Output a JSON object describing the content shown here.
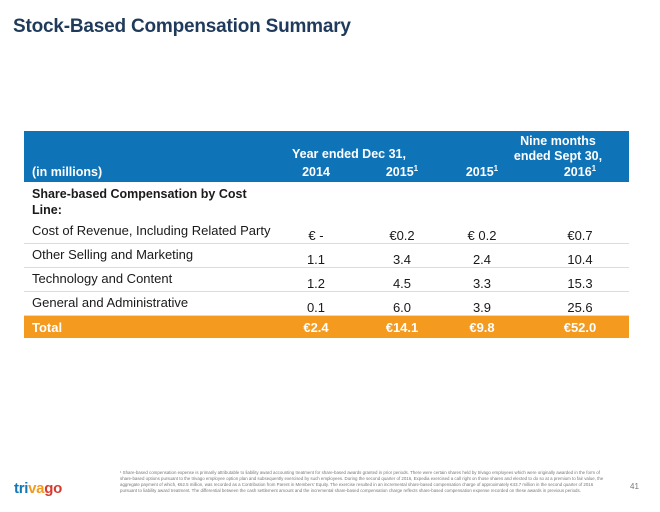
{
  "title": "Stock-Based Compensation Summary",
  "table": {
    "header": {
      "year_group": "Year ended Dec 31,",
      "nine_group_line1": "Nine months",
      "nine_group_line2": "ended Sept 30,",
      "units": "(in millions)",
      "cols": [
        {
          "year": "2014",
          "sup": ""
        },
        {
          "year": "2015",
          "sup": "1"
        },
        {
          "year": "2015",
          "sup": "1"
        },
        {
          "year": "2016",
          "sup": "1"
        }
      ]
    },
    "section_label": "Share-based Compensation by Cost Line:",
    "rows": [
      {
        "label": "Cost of Revenue, Including Related Party",
        "values": [
          "€ -",
          "€0.2",
          "€ 0.2",
          "€0.7"
        ]
      },
      {
        "label": "Other Selling and Marketing",
        "values": [
          "1.1",
          "3.4",
          "2.4",
          "10.4"
        ]
      },
      {
        "label": "Technology and Content",
        "values": [
          "1.2",
          "4.5",
          "3.3",
          "15.3"
        ]
      },
      {
        "label": "General and Administrative",
        "values": [
          "0.1",
          "6.0",
          "3.9",
          "25.6"
        ]
      }
    ],
    "total": {
      "label": "Total",
      "values": [
        "€2.4",
        "€14.1",
        "€9.8",
        "€52.0"
      ]
    }
  },
  "logo": {
    "part1": "tri",
    "part2": "va",
    "part3": "go"
  },
  "footnote": "¹ Share-based compensation expense is primarily attributable to liability award accounting treatment for share-based awards granted in prior periods. There were certain shares held by trivago employees which were originally awarded in the form of share-based options pursuant to the trivago employee option plan and subsequently exercised by such employees. During the second quarter of 2016, Expedia exercised a call right on those shares and elected to do so at a premium to fair value, the aggregate payment of which, €62.5 million, was recorded as a Contribution from Parent in Members' Equity. The exercise resulted in an incremental share-based compensation charge of approximately €43.7 million in the second quarter of 2016 pursuant to liability award treatment. The differential between the cash settlement amount and the incremental share-based compensation charge reflects share-based compensation expense recorded on these awards in previous periods.",
  "page_number": "41",
  "colors": {
    "header_blue": "#0f73b8",
    "total_orange": "#f39a1f",
    "title_navy": "#1f3a5a"
  }
}
